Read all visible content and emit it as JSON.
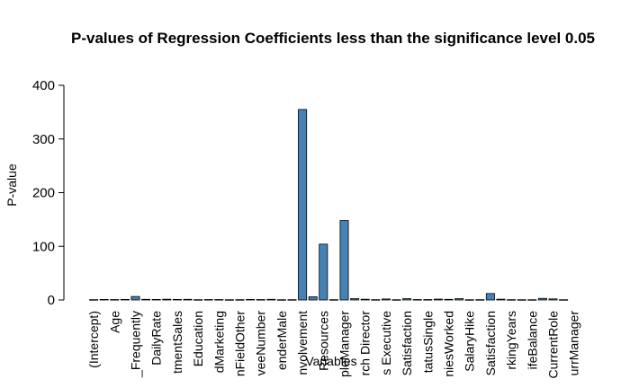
{
  "chart_data": {
    "type": "bar",
    "title": "P-values of Regression Coefficients less than the significance level 0.05",
    "xlabel": "Variables",
    "ylabel": "P-value",
    "ylim": [
      0,
      400
    ],
    "yticks": [
      0,
      100,
      200,
      300,
      400
    ],
    "bar_color": "#4682B4",
    "grid": false,
    "legend": "none",
    "category_labels": [
      "(Intercept)",
      "Age",
      "_Frequently",
      "DailyRate",
      "tmentSales",
      "Education",
      "dMarketing",
      "nFieldOther",
      "veeNumber",
      "enderMale",
      "nvolvement",
      "Resources",
      "pleManager",
      "rch Director",
      "s Executive",
      "Satisfaction",
      "tatusSingle",
      "niesWorked",
      "SalaryHike",
      "Satisfaction",
      "rkingYears",
      "ifeBalance",
      "CurrentRole",
      "urrManager"
    ],
    "categories": [
      "(Intercept)",
      "Age",
      "_Frequently",
      "",
      "DailyRate",
      "",
      "tmentSales",
      "",
      "Education",
      "",
      "dMarketing",
      "",
      "nFieldOther",
      "",
      "veeNumber",
      "",
      "enderMale",
      "",
      "nvolvement",
      "",
      "Resources",
      "",
      "pleManager",
      "",
      "rch Director",
      "",
      "s Executive",
      "",
      "Satisfaction",
      "",
      "tatusSingle",
      "",
      "niesWorked",
      "",
      "SalaryHike",
      "",
      "Satisfaction",
      "",
      "rkingYears",
      "",
      "ifeBalance",
      "",
      "CurrentRole",
      "",
      "urrManager",
      ""
    ],
    "values": [
      0.6,
      1.0,
      0.8,
      1.0,
      6.5,
      1.2,
      1.0,
      1.4,
      1.0,
      1.2,
      0.6,
      0.8,
      0.8,
      0.5,
      0.6,
      1.0,
      0.8,
      1.2,
      0.5,
      0.6,
      355,
      6,
      104,
      0.6,
      148,
      2.5,
      1.4,
      0.6,
      1.8,
      0.5,
      2.5,
      0.8,
      0.8,
      1.6,
      1.2,
      2.5,
      0.5,
      0.6,
      12,
      1.5,
      0.6,
      0.5,
      0.5,
      3.0,
      2.0,
      0.5
    ]
  }
}
